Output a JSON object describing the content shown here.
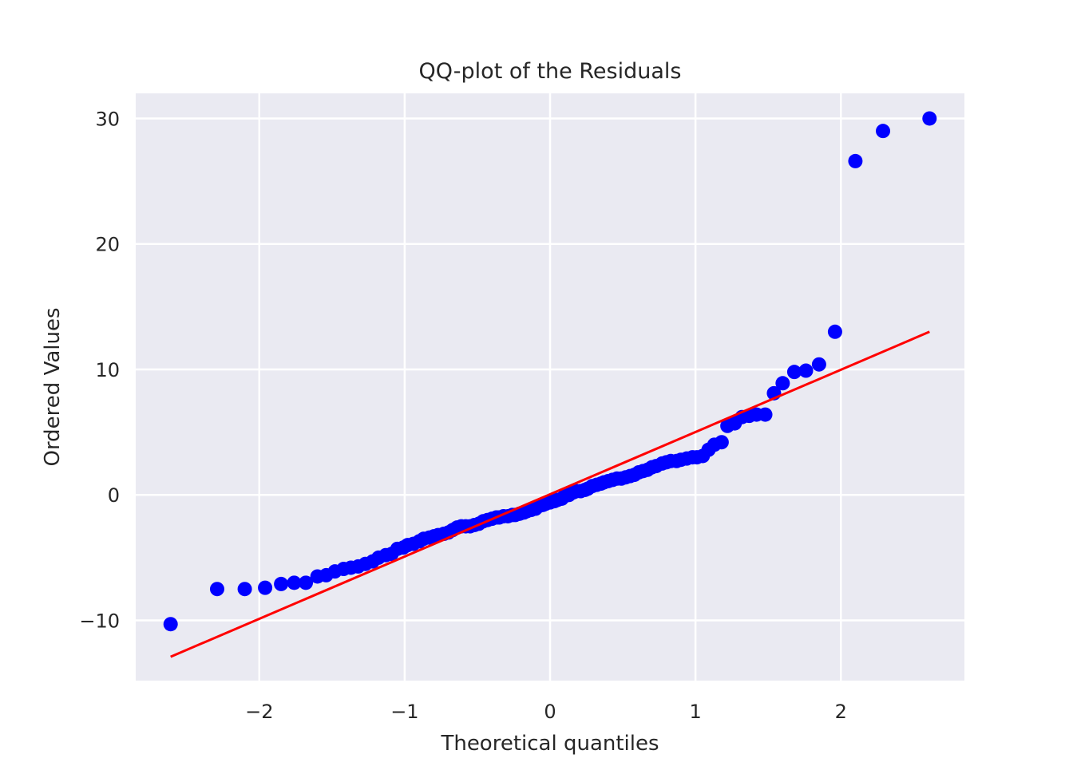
{
  "chart_data": {
    "type": "scatter",
    "title": "QQ-plot of the Residuals",
    "xlabel": "Theoretical quantiles",
    "ylabel": "Ordered Values",
    "xlim": [
      -2.85,
      2.85
    ],
    "ylim": [
      -14.8,
      32.0
    ],
    "xticks": [
      -2,
      -1,
      0,
      1,
      2
    ],
    "xtick_labels": [
      "−2",
      "−1",
      "0",
      "1",
      "2"
    ],
    "yticks": [
      -10,
      0,
      10,
      20,
      30
    ],
    "ytick_labels": [
      "−10",
      "0",
      "10",
      "20",
      "30"
    ],
    "grid": true,
    "background_color": "#eaeaf2",
    "grid_color": "#ffffff",
    "text_color": "#262626",
    "marker_color": "#0000ff",
    "line_color": "#ff0000",
    "fit_line": {
      "x": [
        -2.61,
        2.61
      ],
      "y": [
        -12.9,
        13.0
      ]
    },
    "series": [
      {
        "x": [
          -2.61,
          -2.29,
          -2.1,
          -1.96,
          -1.85,
          -1.76,
          -1.68,
          -1.6,
          -1.54,
          -1.48,
          -1.42,
          -1.37,
          -1.32,
          -1.27,
          -1.22,
          -1.18,
          -1.13,
          -1.09,
          -1.05,
          -1.01,
          -0.98,
          -0.94,
          -0.9,
          -0.87,
          -0.83,
          -0.8,
          -0.77,
          -0.73,
          -0.7,
          -0.67,
          -0.64,
          -0.61,
          -0.58,
          -0.55,
          -0.52,
          -0.49,
          -0.46,
          -0.43,
          -0.4,
          -0.37,
          -0.35,
          -0.32,
          -0.29,
          -0.26,
          -0.24,
          -0.21,
          -0.18,
          -0.16,
          -0.13,
          -0.1,
          -0.08,
          -0.05,
          -0.03,
          0.0,
          0.03,
          0.05,
          0.08,
          0.1,
          0.13,
          0.16,
          0.18,
          0.21,
          0.24,
          0.26,
          0.29,
          0.32,
          0.35,
          0.37,
          0.4,
          0.43,
          0.46,
          0.49,
          0.52,
          0.55,
          0.58,
          0.61,
          0.64,
          0.67,
          0.7,
          0.73,
          0.77,
          0.8,
          0.83,
          0.87,
          0.9,
          0.94,
          0.98,
          1.01,
          1.05,
          1.09,
          1.13,
          1.18,
          1.22,
          1.27,
          1.32,
          1.37,
          1.42,
          1.48,
          1.54,
          1.6,
          1.68,
          1.76,
          1.85,
          1.96,
          2.1,
          2.29,
          2.61
        ],
        "y": [
          -10.3,
          -7.5,
          -7.5,
          -7.4,
          -7.1,
          -7.0,
          -7.0,
          -6.5,
          -6.4,
          -6.1,
          -5.9,
          -5.8,
          -5.7,
          -5.5,
          -5.3,
          -5.0,
          -4.8,
          -4.7,
          -4.3,
          -4.2,
          -4.0,
          -3.9,
          -3.7,
          -3.5,
          -3.4,
          -3.3,
          -3.2,
          -3.1,
          -3.0,
          -2.8,
          -2.6,
          -2.5,
          -2.5,
          -2.5,
          -2.4,
          -2.3,
          -2.1,
          -2.0,
          -1.9,
          -1.8,
          -1.8,
          -1.7,
          -1.7,
          -1.6,
          -1.6,
          -1.5,
          -1.4,
          -1.3,
          -1.2,
          -1.1,
          -0.9,
          -0.8,
          -0.7,
          -0.6,
          -0.5,
          -0.4,
          -0.3,
          -0.1,
          0.0,
          0.2,
          0.3,
          0.3,
          0.4,
          0.5,
          0.7,
          0.8,
          0.9,
          1.0,
          1.1,
          1.2,
          1.3,
          1.3,
          1.4,
          1.5,
          1.6,
          1.8,
          1.9,
          2.0,
          2.2,
          2.3,
          2.5,
          2.6,
          2.7,
          2.7,
          2.8,
          2.9,
          3.0,
          3.0,
          3.1,
          3.6,
          4.0,
          4.2,
          5.5,
          5.7,
          6.2,
          6.3,
          6.4,
          6.4,
          8.1,
          8.9,
          9.8,
          9.9,
          10.4,
          13.0,
          26.6,
          29.0,
          30.0
        ]
      }
    ]
  }
}
